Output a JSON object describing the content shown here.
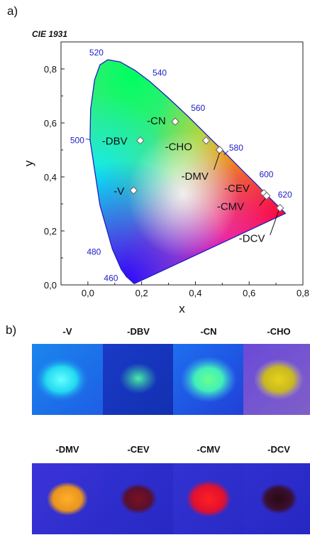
{
  "panel_a_label": "a)",
  "panel_b_label": "b)",
  "chart_data": {
    "type": "scatter",
    "title": "CIE 1931",
    "xlabel": "x",
    "ylabel": "y",
    "xlim": [
      -0.1,
      0.8
    ],
    "ylim": [
      0.0,
      0.9
    ],
    "xticks": [
      0.0,
      0.2,
      0.4,
      0.6,
      0.8
    ],
    "xtick_labels": [
      "0,0",
      "0,2",
      "0,4",
      "0,6",
      "0,8"
    ],
    "yticks": [
      0.0,
      0.2,
      0.4,
      0.6,
      0.8
    ],
    "ytick_labels": [
      "0,0",
      "0,2",
      "0,4",
      "0,6",
      "0,8"
    ],
    "grid": false,
    "locus": [
      {
        "wl": "460",
        "x": 0.144,
        "y": 0.03
      },
      {
        "wl": "480",
        "x": 0.091,
        "y": 0.133
      },
      {
        "wl": "500",
        "x": 0.008,
        "y": 0.538
      },
      {
        "wl": "520",
        "x": 0.074,
        "y": 0.834
      },
      {
        "wl": "540",
        "x": 0.23,
        "y": 0.754
      },
      {
        "wl": "560",
        "x": 0.373,
        "y": 0.624
      },
      {
        "wl": "580",
        "x": 0.512,
        "y": 0.487
      },
      {
        "wl": "600",
        "x": 0.627,
        "y": 0.373
      },
      {
        "wl": "620",
        "x": 0.691,
        "y": 0.308
      }
    ],
    "points": [
      {
        "label": "-V",
        "x": 0.17,
        "y": 0.35
      },
      {
        "label": "-DBV",
        "x": 0.195,
        "y": 0.535
      },
      {
        "label": "-CN",
        "x": 0.325,
        "y": 0.605
      },
      {
        "label": "-CHO",
        "x": 0.44,
        "y": 0.535
      },
      {
        "label": "-DMV",
        "x": 0.49,
        "y": 0.5
      },
      {
        "label": "-CEV",
        "x": 0.655,
        "y": 0.34
      },
      {
        "label": "-CMV",
        "x": 0.665,
        "y": 0.33
      },
      {
        "label": "-DCV",
        "x": 0.715,
        "y": 0.285
      }
    ]
  },
  "photos": [
    {
      "label": "-V"
    },
    {
      "label": "-DBV"
    },
    {
      "label": "-CN"
    },
    {
      "label": "-CHO"
    },
    {
      "label": "-DMV"
    },
    {
      "label": "-CEV"
    },
    {
      "label": "-CMV"
    },
    {
      "label": "-DCV"
    }
  ]
}
